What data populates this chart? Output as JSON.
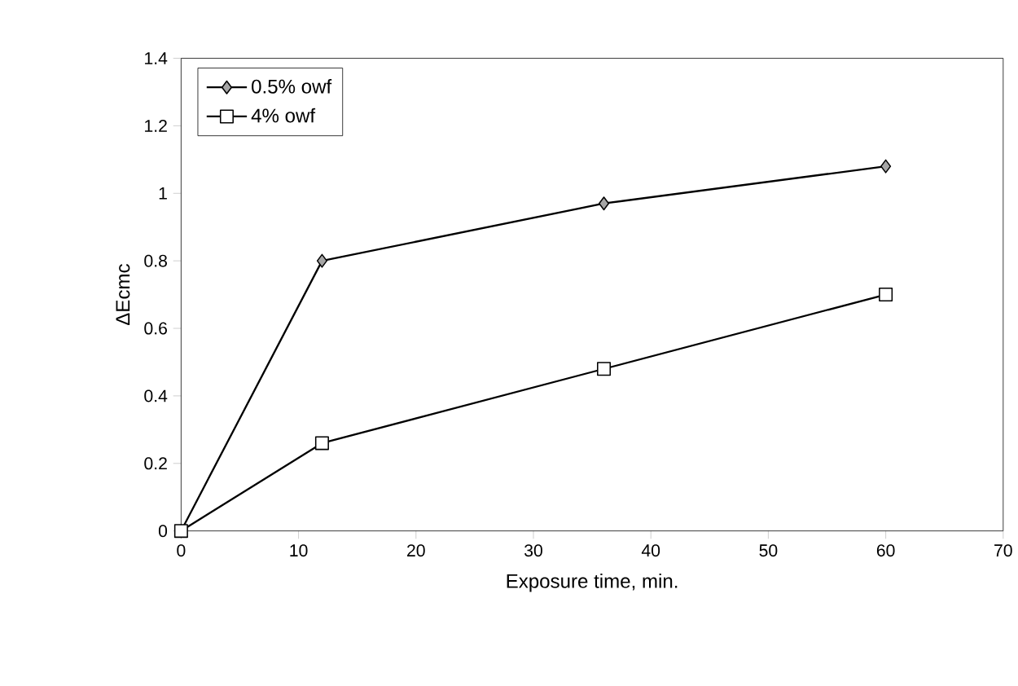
{
  "chart_data": {
    "type": "line",
    "xlabel": "Exposure time, min.",
    "ylabel": "ΔEcmc",
    "x": [
      0,
      12,
      36,
      60
    ],
    "series": [
      {
        "name": "0.5% owf",
        "color": "#000000",
        "marker": "diamond",
        "values": [
          0,
          0.8,
          0.97,
          1.08
        ]
      },
      {
        "name": "4% owf",
        "color": "#000000",
        "marker": "square",
        "values": [
          0,
          0.26,
          0.48,
          0.7
        ]
      }
    ],
    "xlim": [
      0,
      70
    ],
    "xticks": [
      0,
      10,
      20,
      30,
      40,
      50,
      60,
      70
    ],
    "ylim": [
      0,
      1.4
    ],
    "yticks": [
      0,
      0.2,
      0.4,
      0.6,
      0.8,
      1,
      1.2,
      1.4
    ],
    "grid": false,
    "legend": "top left",
    "line_style": "solid"
  }
}
